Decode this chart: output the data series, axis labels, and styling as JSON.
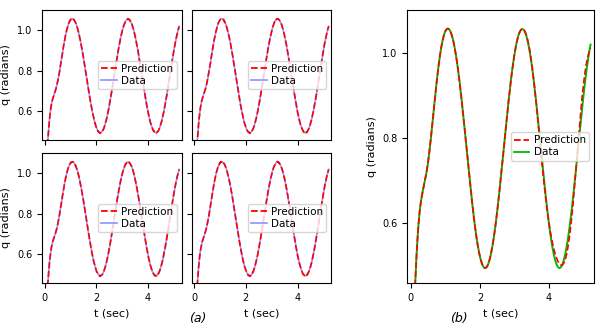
{
  "prediction_color": "#FF0000",
  "data_color_ab": "#9999FF",
  "data_color_c": "#00BB00",
  "prediction_lw": 1.2,
  "data_lw": 1.2,
  "ylim": [
    0.46,
    1.1
  ],
  "xlim": [
    -0.1,
    5.3
  ],
  "yticks": [
    0.6,
    0.8,
    1.0
  ],
  "xticks": [
    0,
    2,
    4
  ],
  "xlabel": "t (sec)",
  "ylabel": "q (radians)",
  "label_prediction": "Prediction",
  "label_data": "Data",
  "label_a": "(a)",
  "label_b": "(b)",
  "tick_fontsize": 7,
  "label_fontsize": 8,
  "legend_fontsize": 7.5
}
